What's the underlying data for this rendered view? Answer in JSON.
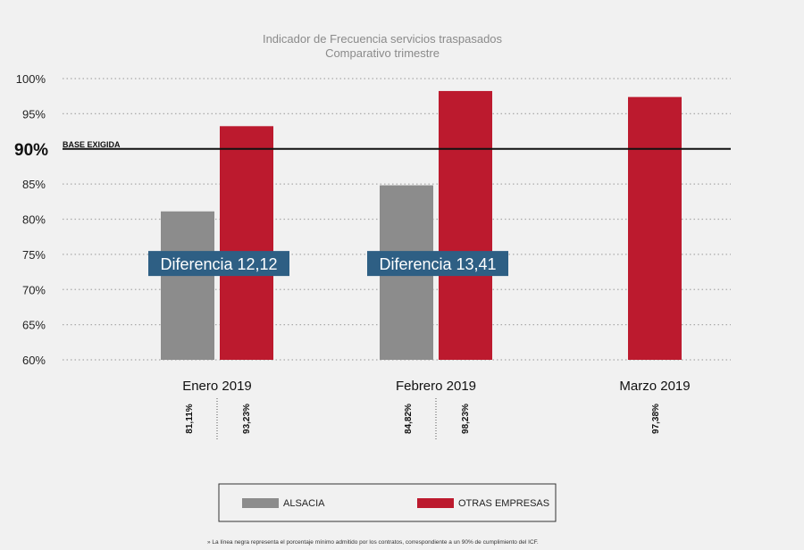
{
  "chart_data": {
    "type": "bar",
    "title": "Indicador de Frecuencia servicios traspasados",
    "subtitle": "Comparativo trimestre",
    "categories": [
      "Enero 2019",
      "Febrero 2019",
      "Marzo 2019"
    ],
    "series": [
      {
        "name": "ALSACIA",
        "color": "#8c8c8c",
        "values": [
          81.11,
          84.82,
          null
        ],
        "labels": [
          "81,11%",
          "84,82%",
          ""
        ]
      },
      {
        "name": "OTRAS EMPRESAS",
        "color": "#bc1a2e",
        "values": [
          93.23,
          98.23,
          97.38
        ],
        "labels": [
          "93,23%",
          "98,23%",
          "97,38%"
        ]
      }
    ],
    "ylim": [
      60,
      100
    ],
    "yticks": [
      {
        "value": 100,
        "label": "100%"
      },
      {
        "value": 95,
        "label": "95%"
      },
      {
        "value": 85,
        "label": "85%"
      },
      {
        "value": 80,
        "label": "80%"
      },
      {
        "value": 75,
        "label": "75%"
      },
      {
        "value": 70,
        "label": "70%"
      },
      {
        "value": 65,
        "label": "65%"
      },
      {
        "value": 60,
        "label": "60%"
      }
    ],
    "grid": true,
    "base_line": {
      "value": 90,
      "value_label": "90%",
      "label": "BASE EXIGIDA"
    },
    "annotations": [
      {
        "category_index": 0,
        "text": "Diferencia 12,12",
        "value": 73.7
      },
      {
        "category_index": 1,
        "text": "Diferencia 13,41",
        "value": 73.7
      }
    ],
    "legend_position": "bottom-center",
    "footnote": "» La línea negra representa el porcentaje mínimo admitido por los contratos, correspondiente a un 90% de cumplimiento del ICF.",
    "colors": {
      "background": "#f1f1f1",
      "annotation_bg": "#2e5f84",
      "grid": "#aaaaaa",
      "base_line": "#111111"
    }
  }
}
